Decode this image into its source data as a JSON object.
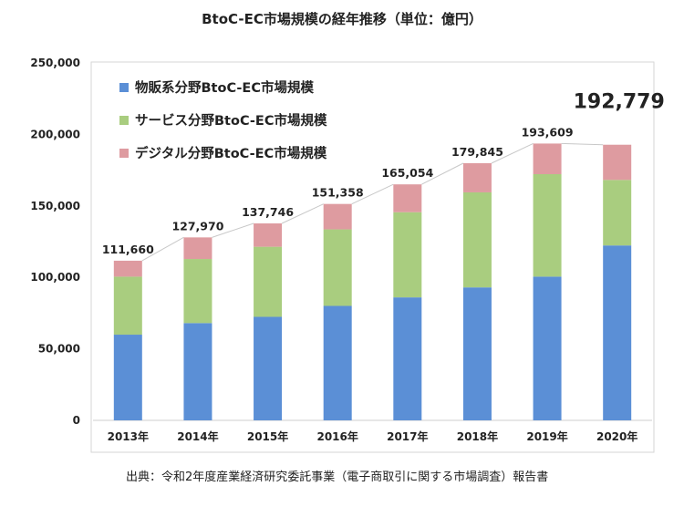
{
  "chart_data": {
    "type": "bar",
    "stacked": true,
    "title": "BtoC-EC市場規模の経年推移（単位：億円）",
    "source": "出典：令和2年度産業経済研究委託事業（電子商取引に関する市場調査）報告書",
    "categories": [
      "2013年",
      "2014年",
      "2015年",
      "2016年",
      "2017年",
      "2018年",
      "2019年",
      "2020年"
    ],
    "series": [
      {
        "name": "物販系分野BtoC-EC市場規模",
        "color": "#5b8fd6",
        "values": [
          59931,
          68043,
          72398,
          80043,
          86008,
          92992,
          100515,
          122333
        ]
      },
      {
        "name": "サービス分野BtoC-EC市場規模",
        "color": "#a9cd7f",
        "values": [
          40574,
          44816,
          49014,
          53532,
          59568,
          66471,
          71672,
          45832
        ]
      },
      {
        "name": "デジタル分野BtoC-EC市場規模",
        "color": "#de9ba0",
        "values": [
          11155,
          15111,
          16334,
          17782,
          19478,
          20382,
          21422,
          24614
        ]
      }
    ],
    "totals": [
      111660,
      127970,
      137746,
      151358,
      165054,
      179845,
      193609,
      192779
    ],
    "total_labels": [
      "111,660",
      "127,970",
      "137,746",
      "151,358",
      "165,054",
      "179,845",
      "193,609",
      "192,779"
    ],
    "highlight_index": 7,
    "y_ticks": [
      "0",
      "50,000",
      "100,000",
      "150,000",
      "200,000",
      "250,000"
    ],
    "ylim": [
      0,
      250000
    ],
    "y_step": 50000,
    "grid": false,
    "legend_position": "top-left"
  }
}
